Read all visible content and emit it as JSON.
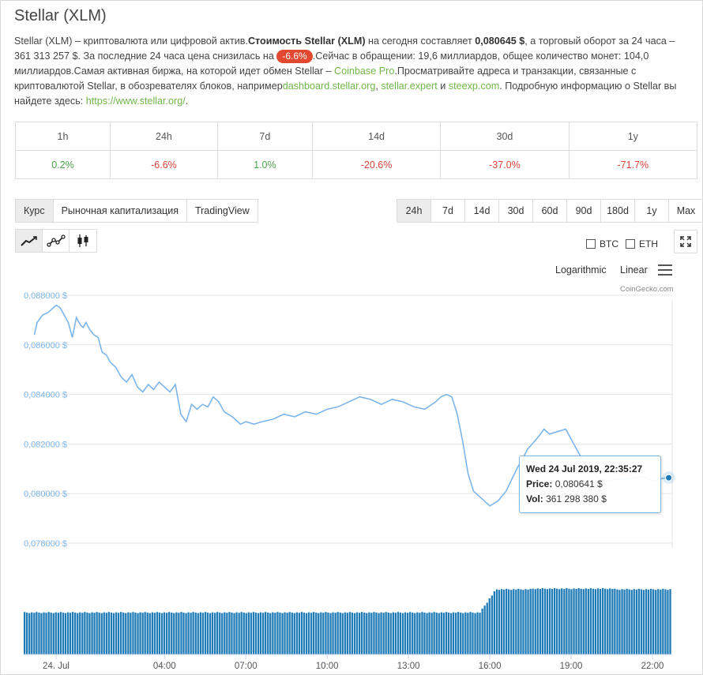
{
  "title": "Stellar (XLM)",
  "description": {
    "p1": "Stellar (XLM) – криптовалюта или цифровой актив.",
    "b1": "Стоимость Stellar (XLM)",
    "p2": " на сегодня составляет ",
    "b2": "0,080645 $",
    "p3": ", а торговый оборот за 24 часа – 361 313 257 $. За последние 24 часа цена снизилась на ",
    "badge": "-6.6%",
    "p4": ".Сейчас в обращении: 19,6 миллиардов, общее количество монет: 104,0 миллиардов.Самая активная биржа, на которой идет обмен Stellar – ",
    "link1": "Coinbase Pro",
    "p5": ".Просматривайте адреса и транзакции, связанные с криптовалютой Stellar, в обозревателях блоков, например",
    "link2": "dashboard.stellar.org",
    "p6": ", ",
    "link3": "stellar.expert",
    "p7": " и ",
    "link4": "steexp.com",
    "p8": ". Подробную информацию о Stellar вы найдете здесь: ",
    "link5": "https://www.stellar.org/",
    "p9": "."
  },
  "changes": [
    {
      "period": "1h",
      "value": "0.2%",
      "dir": "pos"
    },
    {
      "period": "24h",
      "value": "-6.6%",
      "dir": "neg"
    },
    {
      "period": "7d",
      "value": "1.0%",
      "dir": "pos"
    },
    {
      "period": "14d",
      "value": "-20.6%",
      "dir": "neg"
    },
    {
      "period": "30d",
      "value": "-37.0%",
      "dir": "neg"
    },
    {
      "period": "1y",
      "value": "-71.7%",
      "dir": "neg"
    }
  ],
  "tabs": [
    "Курс",
    "Рыночная капитализация",
    "TradingView"
  ],
  "ranges": [
    "24h",
    "7d",
    "14d",
    "30d",
    "60d",
    "90d",
    "180d",
    "1y",
    "Max"
  ],
  "chart_types": [
    "line-chart-icon",
    "marker-line-icon",
    "candlestick-icon"
  ],
  "compare": {
    "btc": "BTC",
    "eth": "ETH"
  },
  "scale": {
    "log": "Logarithmic",
    "linear": "Linear"
  },
  "credit": "CoinGecko.com",
  "tooltip": {
    "date": "Wed 24 Jul 2019, 22:35:27",
    "price_label": "Price:",
    "price": "0,080641 $",
    "vol_label": "Vol:",
    "vol": "361 298 380 $"
  },
  "colors": {
    "line": "#7cb5ec",
    "volume": "#1f7bb6",
    "positive": "#4ca34a",
    "negative": "#d9443a",
    "badge": "#e2472f",
    "link": "#72b64a"
  },
  "chart_data": {
    "type": "line",
    "y_ticks": [
      "0,088000 $",
      "0,086000 $",
      "0,084000 $",
      "0,082000 $",
      "0,080000 $",
      "0,078000 $"
    ],
    "ylim": [
      0.078,
      0.088
    ],
    "x_ticks": [
      "24. Jul",
      "04:00",
      "07:00",
      "10:00",
      "13:00",
      "16:00",
      "19:00",
      "22:00"
    ],
    "x_hours": [
      0.0,
      4.0,
      7.0,
      10.0,
      13.0,
      16.0,
      19.0,
      22.0
    ],
    "price": {
      "x_hours": [
        -0.8,
        -0.7,
        -0.5,
        -0.3,
        0.0,
        0.15,
        0.3,
        0.45,
        0.6,
        0.75,
        0.9,
        1.0,
        1.1,
        1.25,
        1.4,
        1.55,
        1.7,
        1.85,
        2.0,
        2.2,
        2.4,
        2.6,
        2.8,
        3.0,
        3.2,
        3.4,
        3.6,
        3.8,
        4.0,
        4.2,
        4.4,
        4.6,
        4.8,
        5.0,
        5.2,
        5.4,
        5.6,
        5.8,
        6.0,
        6.2,
        6.5,
        6.8,
        7.0,
        7.3,
        7.6,
        8.0,
        8.4,
        8.8,
        9.2,
        9.6,
        10.0,
        10.4,
        10.8,
        11.2,
        11.6,
        12.0,
        12.4,
        12.8,
        13.2,
        13.6,
        14.0,
        14.2,
        14.4,
        14.6,
        14.8,
        15.0,
        15.2,
        15.4,
        15.6,
        15.8,
        16.0,
        16.3,
        16.6,
        17.0,
        17.4,
        17.8,
        18.0,
        18.2,
        18.5,
        18.8,
        19.2,
        19.6,
        20.0,
        20.4,
        20.8,
        21.2,
        21.6,
        22.0,
        22.3,
        22.6
      ],
      "values": [
        0.0864,
        0.0869,
        0.0872,
        0.0873,
        0.0876,
        0.0875,
        0.0872,
        0.0869,
        0.0863,
        0.0871,
        0.0868,
        0.0867,
        0.0869,
        0.0866,
        0.0864,
        0.0863,
        0.0857,
        0.0856,
        0.0853,
        0.0851,
        0.0847,
        0.0845,
        0.0848,
        0.0843,
        0.0841,
        0.0844,
        0.0842,
        0.0845,
        0.0843,
        0.0841,
        0.0844,
        0.0832,
        0.0829,
        0.0836,
        0.0834,
        0.0836,
        0.0835,
        0.0839,
        0.0837,
        0.0833,
        0.0831,
        0.0828,
        0.0829,
        0.0828,
        0.0829,
        0.083,
        0.0832,
        0.0831,
        0.0833,
        0.0832,
        0.0834,
        0.0835,
        0.0837,
        0.0839,
        0.0838,
        0.0836,
        0.0838,
        0.0837,
        0.0835,
        0.0834,
        0.0837,
        0.0839,
        0.084,
        0.0839,
        0.0832,
        0.0821,
        0.0808,
        0.0801,
        0.0799,
        0.0797,
        0.0795,
        0.0797,
        0.0801,
        0.081,
        0.0818,
        0.0823,
        0.0826,
        0.0824,
        0.0825,
        0.0826,
        0.0818,
        0.081,
        0.0806,
        0.0805,
        0.0806,
        0.0806,
        0.0807,
        0.0805,
        0.0806,
        0.08064
      ]
    },
    "volume_relative": {
      "segments": [
        {
          "from_hour": -1.0,
          "to_hour": 15.6,
          "level": 0.64
        },
        {
          "from_hour": 15.6,
          "to_hour": 16.2,
          "level": 0.75
        },
        {
          "from_hour": 16.2,
          "to_hour": 17.5,
          "level": 0.99
        },
        {
          "from_hour": 17.5,
          "to_hour": 20.5,
          "level": 1.0
        },
        {
          "from_hour": 20.5,
          "to_hour": 23.0,
          "level": 0.99
        }
      ]
    }
  }
}
